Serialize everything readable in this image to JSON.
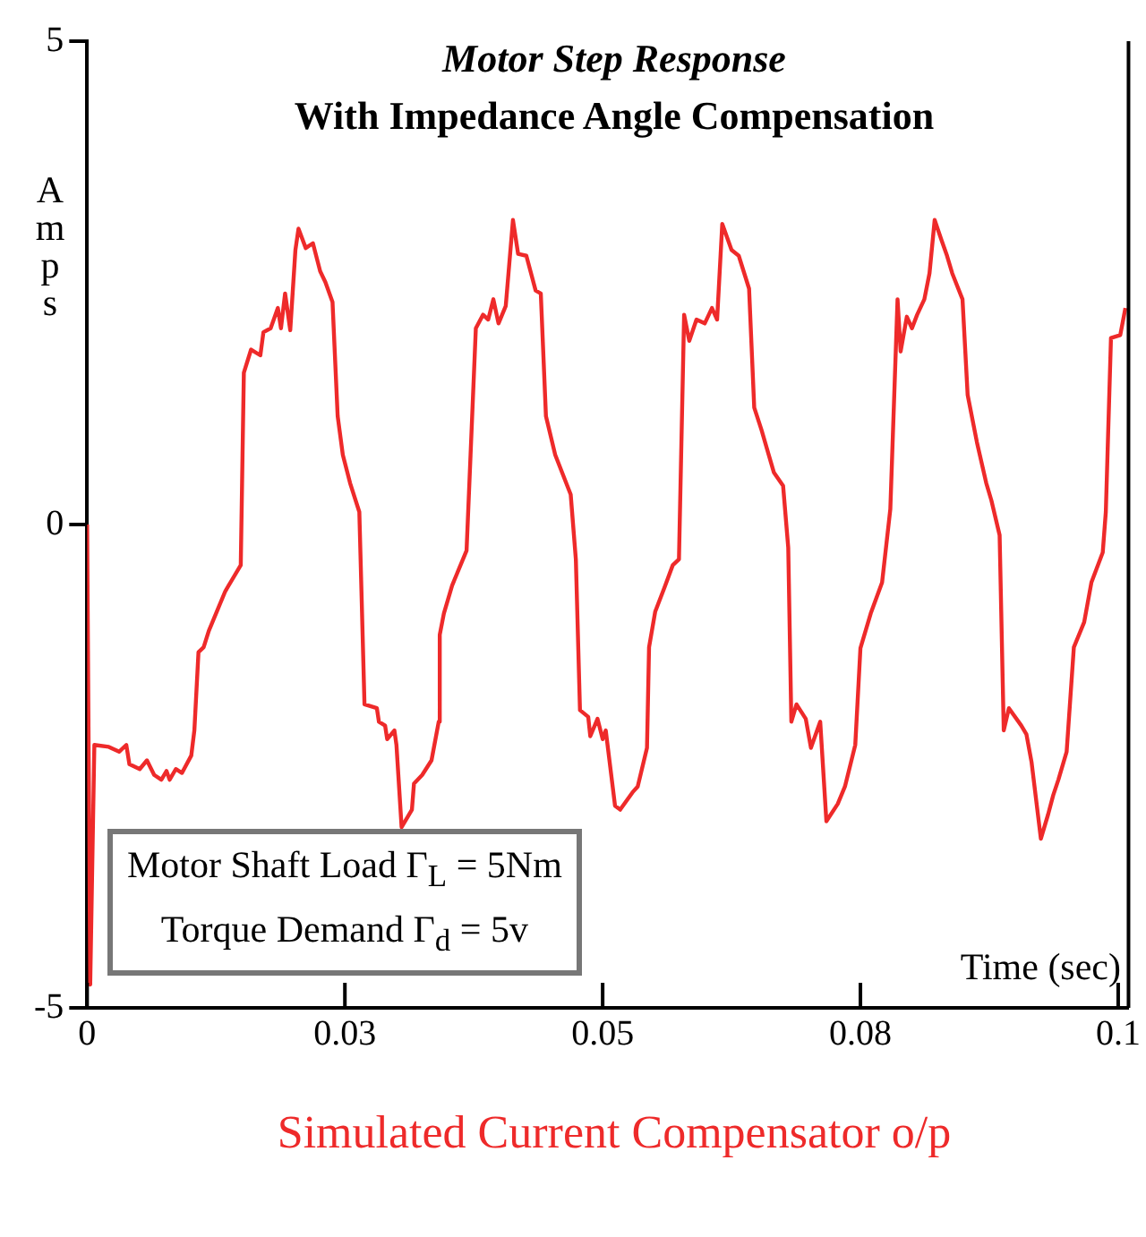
{
  "chart_data": {
    "type": "line",
    "title": "Motor Step Response",
    "subtitle": "With Impedance Angle Compensation",
    "ylabel": "Amps",
    "xlabel": "Time (sec)",
    "annotations": [
      "Motor Shaft Load Γ$_{L}$ = 5Nm",
      "Torque Demand Γ$_{d}$ = 5v",
      "Simulated Current Compensator o/p"
    ],
    "x": [
      0,
      0.0003,
      0.0007,
      0.0021,
      0.0031,
      0.0038,
      0.0041,
      0.0051,
      0.0058,
      0.0065,
      0.0072,
      0.0077,
      0.008,
      0.0086,
      0.0092,
      0.0101,
      0.0104,
      0.0108,
      0.0113,
      0.0118,
      0.0127,
      0.0134,
      0.0149,
      0.0152,
      0.0159,
      0.0168,
      0.0171,
      0.0178,
      0.0185,
      0.0188,
      0.0192,
      0.0197,
      0.0202,
      0.0205,
      0.0212,
      0.0219,
      0.0226,
      0.0231,
      0.0238,
      0.0243,
      0.0248,
      0.0255,
      0.0264,
      0.0269,
      0.0281,
      0.0283,
      0.0289,
      0.0291,
      0.0298,
      0.03,
      0.0305,
      0.0315,
      0.0317,
      0.0325,
      0.0334,
      0.0341,
      0.0342,
      0.0346,
      0.0354,
      0.0368,
      0.0377,
      0.0384,
      0.0389,
      0.0394,
      0.0399,
      0.0406,
      0.0413,
      0.0418,
      0.0426,
      0.0435,
      0.044,
      0.0445,
      0.0454,
      0.0469,
      0.0474,
      0.0478,
      0.0486,
      0.0488,
      0.0495,
      0.05,
      0.0503,
      0.0512,
      0.0517,
      0.0529,
      0.0534,
      0.0543,
      0.0545,
      0.0551,
      0.056,
      0.0568,
      0.0574,
      0.0579,
      0.0584,
      0.0591,
      0.0599,
      0.0606,
      0.0611,
      0.0616,
      0.0625,
      0.0632,
      0.0642,
      0.0647,
      0.0654,
      0.0666,
      0.0675,
      0.068,
      0.0683,
      0.0688,
      0.0697,
      0.0702,
      0.0711,
      0.0717,
      0.0728,
      0.0735,
      0.0745,
      0.075,
      0.076,
      0.0771,
      0.0779,
      0.0786,
      0.0789,
      0.0795,
      0.08,
      0.0805,
      0.0812,
      0.0817,
      0.0822,
      0.0829,
      0.0834,
      0.0839,
      0.0849,
      0.0854,
      0.0863,
      0.0872,
      0.0877,
      0.0885,
      0.0889,
      0.0894,
      0.0906,
      0.0911,
      0.0916,
      0.0925,
      0.0932,
      0.0937,
      0.0942,
      0.095,
      0.0957,
      0.0967,
      0.0974,
      0.0985,
      0.0988,
      0.0993,
      0.1002,
      0.1007
    ],
    "series": [
      {
        "color": "#ee2a2a",
        "values": [
          0,
          -4.76,
          -2.28,
          -2.3,
          -2.35,
          -2.28,
          -2.48,
          -2.53,
          -2.44,
          -2.59,
          -2.64,
          -2.55,
          -2.64,
          -2.53,
          -2.57,
          -2.39,
          -2.13,
          -1.32,
          -1.27,
          -1.1,
          -0.87,
          -0.69,
          -0.42,
          1.57,
          1.81,
          1.75,
          1.99,
          2.03,
          2.24,
          2.03,
          2.39,
          2.01,
          2.84,
          3.06,
          2.86,
          2.91,
          2.62,
          2.51,
          2.3,
          1.12,
          0.72,
          0.43,
          0.13,
          -1.86,
          -1.9,
          -2.04,
          -2.08,
          -2.22,
          -2.13,
          -2.28,
          -3.13,
          -2.95,
          -2.68,
          -2.59,
          -2.44,
          -2.04,
          -1.14,
          -0.92,
          -0.63,
          -0.27,
          2.03,
          2.17,
          2.12,
          2.33,
          2.08,
          2.26,
          3.15,
          2.8,
          2.78,
          2.42,
          2.39,
          1.12,
          0.72,
          0.31,
          -0.36,
          -1.92,
          -1.99,
          -2.19,
          -2.01,
          -2.22,
          -2.13,
          -2.91,
          -2.95,
          -2.77,
          -2.71,
          -2.31,
          -1.27,
          -0.9,
          -0.65,
          -0.42,
          -0.36,
          2.17,
          1.9,
          2.12,
          2.08,
          2.24,
          2.12,
          3.11,
          2.84,
          2.78,
          2.44,
          1.21,
          0.98,
          0.54,
          0.4,
          -0.24,
          -2.04,
          -1.86,
          -2.01,
          -2.31,
          -2.04,
          -3.07,
          -2.89,
          -2.71,
          -2.28,
          -1.28,
          -0.92,
          -0.6,
          0.16,
          2.33,
          1.79,
          2.15,
          2.03,
          2.17,
          2.33,
          2.6,
          3.15,
          2.93,
          2.78,
          2.6,
          2.33,
          1.34,
          0.85,
          0.43,
          0.25,
          -0.11,
          -2.13,
          -1.9,
          -2.08,
          -2.17,
          -2.46,
          -3.25,
          -3,
          -2.8,
          -2.64,
          -2.35,
          -1.27,
          -1.01,
          -0.6,
          -0.29,
          0.13,
          1.93,
          1.96,
          2.24
        ]
      }
    ],
    "xlim": [
      0,
      0.101
    ],
    "ylim": [
      -5,
      5
    ],
    "xticks": [
      0,
      {
        "value": 0.025,
        "label": "0.03"
      },
      0.05,
      {
        "value": 0.075,
        "label": "0.08"
      },
      0.1
    ],
    "yticks": [
      -5,
      0,
      5
    ],
    "grid": false,
    "legend": false,
    "marker": "none",
    "line_style": "solid"
  }
}
